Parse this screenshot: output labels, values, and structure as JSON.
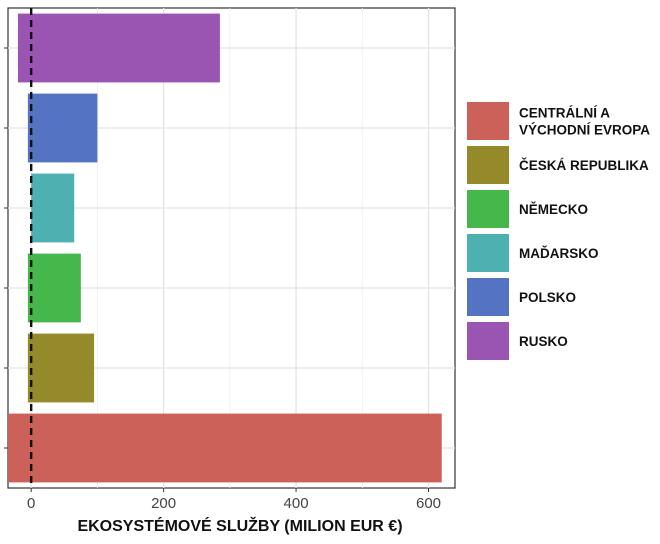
{
  "chart_data": {
    "type": "bar",
    "orientation": "horizontal",
    "xlabel": "EKOSYSTÉMOVÉ SLUŽBY (MILION EUR €)",
    "ylabel": "",
    "xlim": [
      -35,
      640
    ],
    "xticks": [
      0,
      200,
      400,
      600
    ],
    "grid": true,
    "reference_line": {
      "x": 0,
      "style": "dashed"
    },
    "legend_position": "right",
    "series": [
      {
        "name": "CENTRÁLNÍ A VÝCHODNÍ EVROPA",
        "name_lines": [
          "CENTRÁLNÍ A",
          "VÝCHODNÍ EVROPA"
        ],
        "color": "#CC6159",
        "start": -35,
        "value": 620
      },
      {
        "name": "ČESKÁ REPUBLIKA",
        "name_lines": [
          "ČESKÁ REPUBLIKA"
        ],
        "color": "#958A2A",
        "start": -5,
        "value": 95
      },
      {
        "name": "NĚMECKO",
        "name_lines": [
          "NĚMECKO"
        ],
        "color": "#46B74B",
        "start": -5,
        "value": 75
      },
      {
        "name": "MAĎARSKO",
        "name_lines": [
          "MAĎARSKO"
        ],
        "color": "#4DB1B1",
        "start": 0,
        "value": 65
      },
      {
        "name": "POLSKO",
        "name_lines": [
          "POLSKO"
        ],
        "color": "#5474C3",
        "start": -5,
        "value": 100
      },
      {
        "name": "RUSKO",
        "name_lines": [
          "RUSKO"
        ],
        "color": "#9A55B3",
        "start": -20,
        "value": 285
      }
    ]
  }
}
